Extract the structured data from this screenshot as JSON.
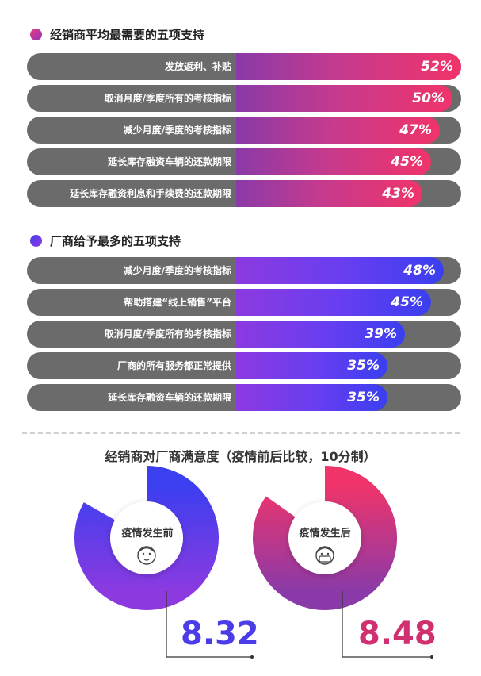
{
  "sections": [
    {
      "title": "经销商平均最需要的五项支持",
      "bars": [
        {
          "label": "发放返利、补贴",
          "value": 52,
          "display": "52%"
        },
        {
          "label": "取消月度/季度所有的考核指标",
          "value": 50,
          "display": "50%"
        },
        {
          "label": "减少月度/季度的考核指标",
          "value": 47,
          "display": "47%"
        },
        {
          "label": "延长库存融资车辆的还款期限",
          "value": 45,
          "display": "45%"
        },
        {
          "label": "延长库存融资利息和手续费的还款期限",
          "value": 43,
          "display": "43%"
        }
      ]
    },
    {
      "title": "厂商给予最多的五项支持",
      "bars": [
        {
          "label": "减少月度/季度的考核指标",
          "value": 48,
          "display": "48%"
        },
        {
          "label": "帮助搭建“线上销售”平台",
          "value": 45,
          "display": "45%"
        },
        {
          "label": "取消月度/季度所有的考核指标",
          "value": 39,
          "display": "39%"
        },
        {
          "label": "厂商的所有服务都正常提供",
          "value": 35,
          "display": "35%"
        },
        {
          "label": "延长库存融资车辆的还款期限",
          "value": 35,
          "display": "35%"
        }
      ]
    }
  ],
  "satisfaction": {
    "title": "经销商对厂商满意度（疫情前后比较，10分制）",
    "items": [
      {
        "label": "疫情发生前",
        "value": 8.32,
        "display": "8.32",
        "colors": [
          "#3a3ff0",
          "#8c3ae0"
        ]
      },
      {
        "label": "疫情发生后",
        "value": 8.48,
        "display": "8.48",
        "colors": [
          "#f0346a",
          "#8a3aa8"
        ]
      }
    ],
    "max": 10
  },
  "chart_data": [
    {
      "type": "bar",
      "title": "经销商平均最需要的五项支持",
      "categories": [
        "发放返利、补贴",
        "取消月度/季度所有的考核指标",
        "减少月度/季度的考核指标",
        "延长库存融资车辆的还款期限",
        "延长库存融资利息和手续费的还款期限"
      ],
      "values": [
        52,
        50,
        47,
        45,
        43
      ]
    },
    {
      "type": "bar",
      "title": "厂商给予最多的五项支持",
      "categories": [
        "减少月度/季度的考核指标",
        "帮助搭建“线上销售”平台",
        "取消月度/季度所有的考核指标",
        "厂商的所有服务都正常提供",
        "延长库存融资车辆的还款期限"
      ],
      "values": [
        48,
        45,
        39,
        35,
        35
      ]
    },
    {
      "type": "pie",
      "title": "经销商对厂商满意度（疫情前后比较，10分制）",
      "categories": [
        "疫情发生前",
        "疫情发生后"
      ],
      "values": [
        8.32,
        8.48
      ],
      "max": 10
    }
  ]
}
